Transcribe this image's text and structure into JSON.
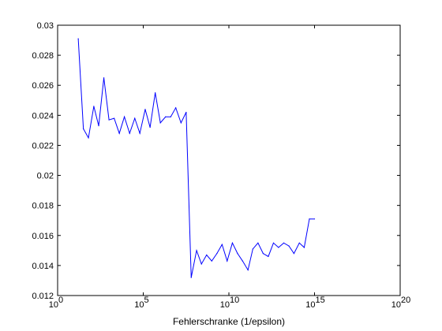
{
  "chart_data": {
    "type": "line",
    "title": "",
    "xlabel": "Fehlerschranke (1/epsilon)",
    "ylabel": "",
    "xscale": "log",
    "xlim": [
      1,
      1e+20
    ],
    "ylim": [
      0.012,
      0.03
    ],
    "grid": false,
    "legend": "none",
    "line_color": "#0000ff",
    "x_ticks": [
      {
        "value": 1,
        "base": "10",
        "exp": "0"
      },
      {
        "value": 100000.0,
        "base": "10",
        "exp": "5"
      },
      {
        "value": 10000000000.0,
        "base": "10",
        "exp": "10"
      },
      {
        "value": 1000000000000000.0,
        "base": "10",
        "exp": "15"
      },
      {
        "value": 1e+20,
        "base": "10",
        "exp": "20"
      }
    ],
    "y_ticks": [
      {
        "value": 0.012,
        "label": "0.012"
      },
      {
        "value": 0.014,
        "label": "0.014"
      },
      {
        "value": 0.016,
        "label": "0.016"
      },
      {
        "value": 0.018,
        "label": "0.018"
      },
      {
        "value": 0.02,
        "label": "0.02"
      },
      {
        "value": 0.022,
        "label": "0.022"
      },
      {
        "value": 0.024,
        "label": "0.024"
      },
      {
        "value": 0.026,
        "label": "0.026"
      },
      {
        "value": 0.028,
        "label": "0.028"
      },
      {
        "value": 0.03,
        "label": "0.03"
      }
    ],
    "series": [
      {
        "x": [
          16.0,
          32.0,
          63.0,
          130.0,
          250.0,
          500.0,
          1000.0,
          2000.0,
          4000.0,
          7900.0,
          16000.0,
          32000.0,
          63000.0,
          130000.0,
          250000.0,
          500000.0,
          1000000.0,
          2000000.0,
          4000000.0,
          7900000.0,
          16000000.0,
          32000000.0,
          63000000.0,
          130000000.0,
          250000000.0,
          500000000.0,
          1000000000.0,
          2000000000.0,
          4000000000.0,
          7900000000.0,
          16000000000.0,
          32000000000.0,
          63000000000.0,
          130000000000.0,
          250000000000.0,
          500000000000.0,
          1000000000000.0,
          2000000000000.0,
          4000000000000.0,
          7900000000000.0,
          16000000000000.0,
          32000000000000.0,
          63000000000000.0,
          130000000000000.0,
          250000000000000.0,
          500000000000000.0,
          1000000000000000.0
        ],
        "y": [
          0.0291,
          0.0231,
          0.0225,
          0.0246,
          0.0233,
          0.0265,
          0.0237,
          0.0238,
          0.0228,
          0.0239,
          0.0228,
          0.0238,
          0.0228,
          0.0244,
          0.0232,
          0.0255,
          0.0235,
          0.0239,
          0.0239,
          0.0245,
          0.0235,
          0.0242,
          0.0132,
          0.015,
          0.0141,
          0.0147,
          0.0143,
          0.0148,
          0.0154,
          0.0143,
          0.0155,
          0.0148,
          0.0143,
          0.0137,
          0.0151,
          0.0155,
          0.0148,
          0.0146,
          0.0155,
          0.0152,
          0.0155,
          0.0153,
          0.0148,
          0.0155,
          0.0152,
          0.0171,
          0.0171
        ]
      }
    ]
  }
}
